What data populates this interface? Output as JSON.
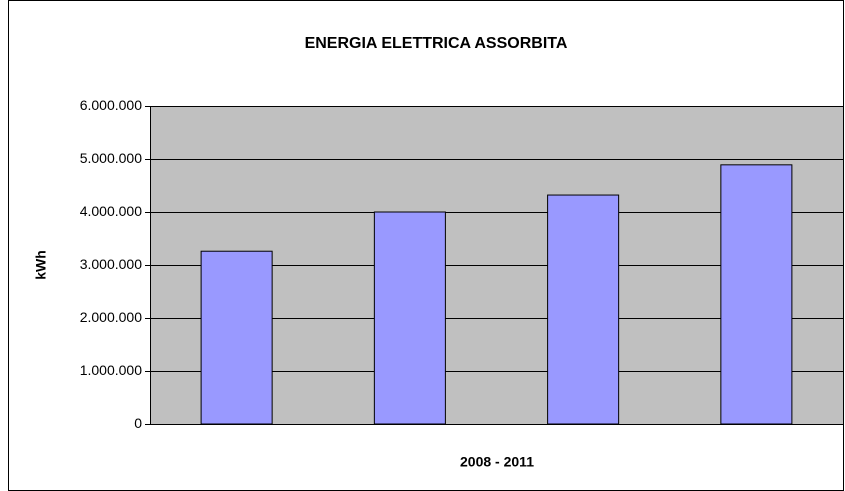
{
  "chart_data": {
    "type": "bar",
    "title": "ENERGIA ELETTRICA ASSORBITA",
    "x_label": "2008 - 2011",
    "y_label": "kWh",
    "categories": [
      null,
      null,
      null,
      null
    ],
    "values": [
      3260000,
      4000000,
      4320000,
      4890000
    ],
    "color": "#9999ff",
    "plot_background": "#c0c0c0",
    "ylim": [
      0,
      6000000
    ],
    "yticks": [
      0,
      {
        "value": 1000000,
        "label": "1.000.000"
      },
      {
        "value": 2000000,
        "label": "2.000.000"
      },
      {
        "value": 3000000,
        "label": "3.000.000"
      },
      {
        "value": 4000000,
        "label": "4.000.000"
      },
      {
        "value": 5000000,
        "label": "5.000.000"
      },
      {
        "value": 6000000,
        "label": "6.000.000"
      }
    ],
    "grid": true
  }
}
